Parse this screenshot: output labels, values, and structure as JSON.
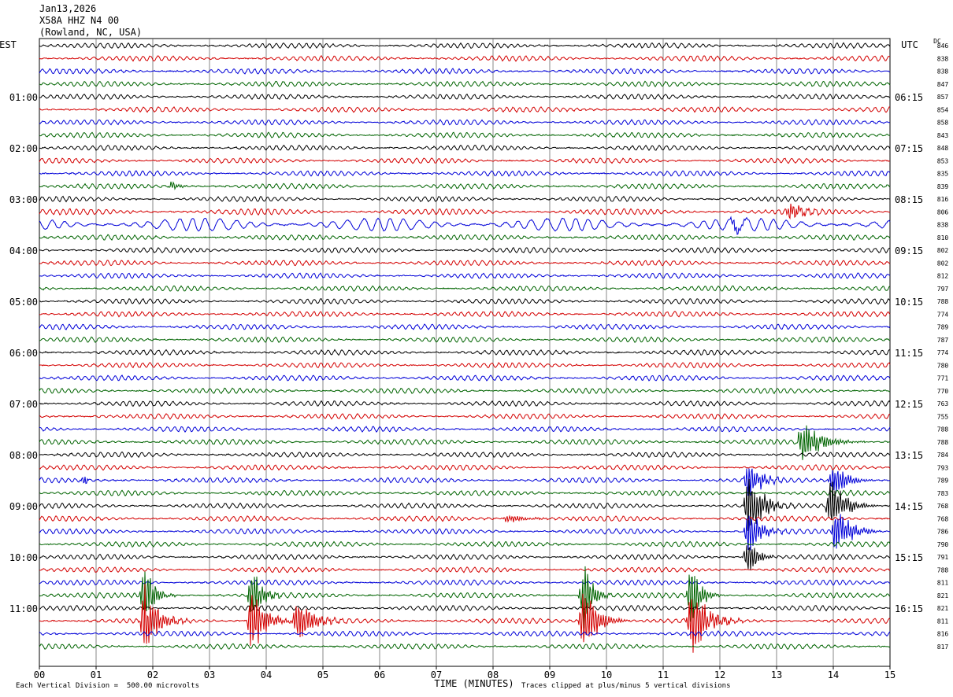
{
  "header": {
    "date": "Jan13,2026",
    "station": "X58A HHZ N4 00",
    "location": "(Rowland, NC, USA)"
  },
  "chart_data": {
    "type": "line",
    "subtype": "helicorder",
    "xlabel": "TIME (MINUTES)",
    "x_ticks": [
      "00",
      "01",
      "02",
      "03",
      "04",
      "05",
      "06",
      "07",
      "08",
      "09",
      "10",
      "11",
      "12",
      "13",
      "14",
      "15"
    ],
    "xlim": [
      0,
      15
    ],
    "left_axis_title": "EST",
    "right_axis_title": "UTC",
    "dc_title": "DC",
    "row_count": 48,
    "row_minutes": 15,
    "trace_colors": [
      "#000000",
      "#d40000",
      "#0000d8",
      "#006400"
    ],
    "left_hour_labels": [
      {
        "row": 4,
        "label": "01:00"
      },
      {
        "row": 8,
        "label": "02:00"
      },
      {
        "row": 12,
        "label": "03:00"
      },
      {
        "row": 16,
        "label": "04:00"
      },
      {
        "row": 20,
        "label": "05:00"
      },
      {
        "row": 24,
        "label": "06:00"
      },
      {
        "row": 28,
        "label": "07:00"
      },
      {
        "row": 32,
        "label": "08:00"
      },
      {
        "row": 36,
        "label": "09:00"
      },
      {
        "row": 40,
        "label": "10:00"
      },
      {
        "row": 44,
        "label": "11:00"
      }
    ],
    "right_hour_labels": [
      {
        "row": 4,
        "label": "06:15"
      },
      {
        "row": 8,
        "label": "07:15"
      },
      {
        "row": 12,
        "label": "08:15"
      },
      {
        "row": 16,
        "label": "09:15"
      },
      {
        "row": 20,
        "label": "10:15"
      },
      {
        "row": 24,
        "label": "11:15"
      },
      {
        "row": 28,
        "label": "12:15"
      },
      {
        "row": 32,
        "label": "13:15"
      },
      {
        "row": 36,
        "label": "14:15"
      },
      {
        "row": 40,
        "label": "15:15"
      },
      {
        "row": 44,
        "label": "16:15"
      }
    ],
    "dc_values": [
      "846",
      "838",
      "838",
      "847",
      "857",
      "854",
      "858",
      "843",
      "848",
      "853",
      "835",
      "839",
      "816",
      "806",
      "838",
      "810",
      "802",
      "802",
      "812",
      "797",
      "788",
      "774",
      "789",
      "787",
      "774",
      "780",
      "771",
      "770",
      "763",
      "755",
      "788",
      "788",
      "784",
      "793",
      "789",
      "783",
      "768",
      "768",
      "786",
      "790",
      "791",
      "788",
      "811",
      "821",
      "821",
      "811",
      "816",
      "817"
    ],
    "events": [
      {
        "row": 13,
        "minute": 13.2,
        "amp": 14,
        "dur": 0.8
      },
      {
        "row": 14,
        "minute": 12.2,
        "amp": 10,
        "dur": 0.4
      },
      {
        "row": 31,
        "minute": 13.4,
        "amp": 30,
        "dur": 1.2
      },
      {
        "row": 34,
        "minute": 12.45,
        "amp": 28,
        "dur": 0.8
      },
      {
        "row": 34,
        "minute": 13.95,
        "amp": 28,
        "dur": 0.8
      },
      {
        "row": 36,
        "minute": 12.45,
        "amp": 50,
        "dur": 0.9
      },
      {
        "row": 36,
        "minute": 13.9,
        "amp": 42,
        "dur": 0.9
      },
      {
        "row": 38,
        "minute": 12.45,
        "amp": 40,
        "dur": 0.8
      },
      {
        "row": 38,
        "minute": 14.0,
        "amp": 36,
        "dur": 0.9
      },
      {
        "row": 40,
        "minute": 12.45,
        "amp": 30,
        "dur": 0.6
      },
      {
        "row": 43,
        "minute": 1.8,
        "amp": 48,
        "dur": 0.6
      },
      {
        "row": 43,
        "minute": 3.7,
        "amp": 48,
        "dur": 0.6
      },
      {
        "row": 43,
        "minute": 9.55,
        "amp": 48,
        "dur": 0.6
      },
      {
        "row": 43,
        "minute": 11.45,
        "amp": 46,
        "dur": 0.6
      },
      {
        "row": 45,
        "minute": 1.8,
        "amp": 50,
        "dur": 0.9
      },
      {
        "row": 45,
        "minute": 3.7,
        "amp": 50,
        "dur": 0.9
      },
      {
        "row": 45,
        "minute": 4.5,
        "amp": 32,
        "dur": 1.0
      },
      {
        "row": 45,
        "minute": 9.55,
        "amp": 50,
        "dur": 0.9
      },
      {
        "row": 45,
        "minute": 11.45,
        "amp": 50,
        "dur": 1.0
      },
      {
        "row": 37,
        "minute": 8.2,
        "amp": 6,
        "dur": 1.2
      },
      {
        "row": 34,
        "minute": 0.75,
        "amp": 8,
        "dur": 0.15
      },
      {
        "row": 11,
        "minute": 2.3,
        "amp": 7,
        "dur": 0.4
      }
    ]
  },
  "footer": {
    "division_note": "Each Vertical Division =  500.00 microvolts",
    "clip_note": "Traces clipped at plus/minus 5 vertical divisions"
  }
}
